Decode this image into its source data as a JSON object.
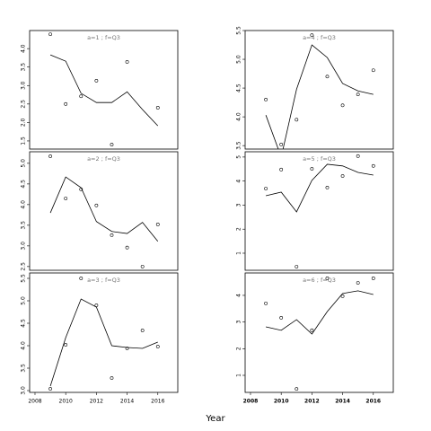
{
  "chart_data": [
    {
      "type": "scatter",
      "title": "a=1 ; f=Q3",
      "x": [
        2009,
        2010,
        2011,
        2012,
        2013,
        2014,
        2015,
        2016
      ],
      "points": [
        4.39,
        2.5,
        2.71,
        3.13,
        1.4,
        3.64,
        null,
        2.4
      ],
      "fit": [
        3.83,
        3.66,
        2.79,
        2.54,
        2.54,
        2.83,
        2.35,
        1.91
      ],
      "xlim": [
        2007.65,
        2017.3
      ],
      "ylim": [
        1.28,
        4.49
      ],
      "yticks": [
        1.5,
        {
          "value": 2,
          "label": "2.0"
        },
        2.5,
        {
          "value": 3,
          "label": "3.0"
        },
        3.5,
        {
          "value": 4,
          "label": "4.0"
        }
      ]
    },
    {
      "type": "scatter",
      "title": "a=2 ; f=Q3",
      "x": [
        2009,
        2010,
        2011,
        2012,
        2013,
        2014,
        2015,
        2016
      ],
      "points": [
        5.17,
        4.15,
        4.37,
        3.98,
        3.26,
        2.96,
        2.5,
        3.52
      ],
      "fit": [
        3.8,
        4.67,
        4.41,
        3.59,
        3.35,
        3.3,
        3.57,
        3.11
      ],
      "xlim": [
        2007.65,
        2017.3
      ],
      "ylim": [
        2.41,
        5.28
      ],
      "yticks": [
        2.5,
        {
          "value": 3,
          "label": "3.0"
        },
        3.5,
        {
          "value": 4,
          "label": "4.0"
        },
        4.5,
        {
          "value": 5,
          "label": "5.0"
        }
      ]
    },
    {
      "type": "scatter",
      "title": "a=3 ; f=Q3",
      "x": [
        2009,
        2010,
        2011,
        2012,
        2013,
        2014,
        2015,
        2016
      ],
      "points": [
        3.04,
        4.02,
        5.5,
        4.9,
        3.28,
        3.94,
        4.34,
        3.98
      ],
      "fit": [
        3.1,
        4.18,
        5.04,
        4.86,
        4.0,
        3.96,
        3.94,
        4.08
      ],
      "xlim": [
        2007.65,
        2017.3
      ],
      "ylim": [
        2.96,
        5.62
      ],
      "yticks": [
        {
          "value": 3,
          "label": "3.0"
        },
        3.5,
        {
          "value": 4,
          "label": "4.0"
        },
        4.5,
        {
          "value": 5,
          "label": "5.0"
        },
        5.5
      ],
      "xticks": [
        2008,
        2010,
        2012,
        2014,
        2016
      ],
      "xlabel": "Year"
    },
    {
      "type": "scatter",
      "title": "a=4 ; f=Q3",
      "x": [
        2009,
        2010,
        2011,
        2012,
        2013,
        2014,
        2015,
        2016
      ],
      "points": [
        4.3,
        3.52,
        3.95,
        5.42,
        4.7,
        4.2,
        4.39,
        4.81
      ],
      "fit": [
        4.03,
        3.3,
        4.48,
        5.25,
        5.03,
        4.58,
        4.45,
        4.39
      ],
      "xlim": [
        2007.65,
        2017.3
      ],
      "ylim": [
        3.44,
        5.5
      ],
      "yticks": [
        3.5,
        {
          "value": 4,
          "label": "4.0"
        },
        4.5,
        {
          "value": 5,
          "label": "5.0"
        },
        5.5
      ]
    },
    {
      "type": "scatter",
      "title": "a=5 ; f=Q3",
      "x": [
        2009,
        2010,
        2011,
        2012,
        2013,
        2014,
        2015,
        2016
      ],
      "points": [
        3.69,
        4.48,
        0.44,
        4.51,
        3.73,
        4.21,
        5.04,
        4.63
      ],
      "fit": [
        3.39,
        3.54,
        2.72,
        4.03,
        4.7,
        4.63,
        4.36,
        4.25
      ],
      "xlim": [
        2007.65,
        2017.3
      ],
      "ylim": [
        0.29,
        5.22
      ],
      "yticks": [
        1,
        2,
        3,
        4,
        5
      ]
    },
    {
      "type": "scatter",
      "title": "a=6 ; f=Q3",
      "x": [
        2009,
        2010,
        2011,
        2012,
        2013,
        2014,
        2015,
        2016
      ],
      "points": [
        3.7,
        3.16,
        0.49,
        2.69,
        4.64,
        3.97,
        4.47,
        4.64
      ],
      "fit": [
        2.82,
        2.69,
        3.09,
        2.55,
        3.39,
        4.07,
        4.17,
        4.03
      ],
      "xlim": [
        2007.65,
        2017.3
      ],
      "ylim": [
        0.36,
        4.84
      ],
      "yticks": [
        1,
        2,
        3,
        4
      ],
      "xticks": [
        2008,
        2010,
        2012,
        2014,
        2016
      ]
    }
  ]
}
